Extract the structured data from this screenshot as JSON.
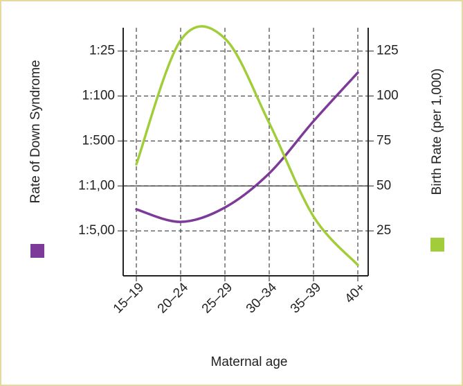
{
  "chart_data": {
    "type": "line",
    "x_label": "Maternal age",
    "categories": [
      "15–19",
      "20–24",
      "25–29",
      "30–34",
      "35–39",
      "40+"
    ],
    "series": [
      {
        "name": "Rate of Down Syndrome",
        "color": "#7d3a98",
        "values": [
          37,
          30,
          38,
          57,
          86,
          113
        ],
        "axis": "y"
      },
      {
        "name": "Birth Rate (per 1,000)",
        "color": "#a2cd3a",
        "values": [
          62,
          131,
          132,
          85,
          33,
          6
        ],
        "axis": "y2"
      }
    ],
    "ylim": [
      0,
      138
    ],
    "yticks": [
      {
        "value": 25,
        "label": "1:5,00"
      },
      {
        "value": 50,
        "label": "1:1,00"
      },
      {
        "value": 75,
        "label": "1:500"
      },
      {
        "value": 100,
        "label": "1:100"
      },
      {
        "value": 125,
        "label": "1:25"
      }
    ],
    "y2lim": [
      0,
      138
    ],
    "y2ticks": [
      25,
      50,
      75,
      100,
      125
    ],
    "reference_line": 50,
    "grid": true
  }
}
